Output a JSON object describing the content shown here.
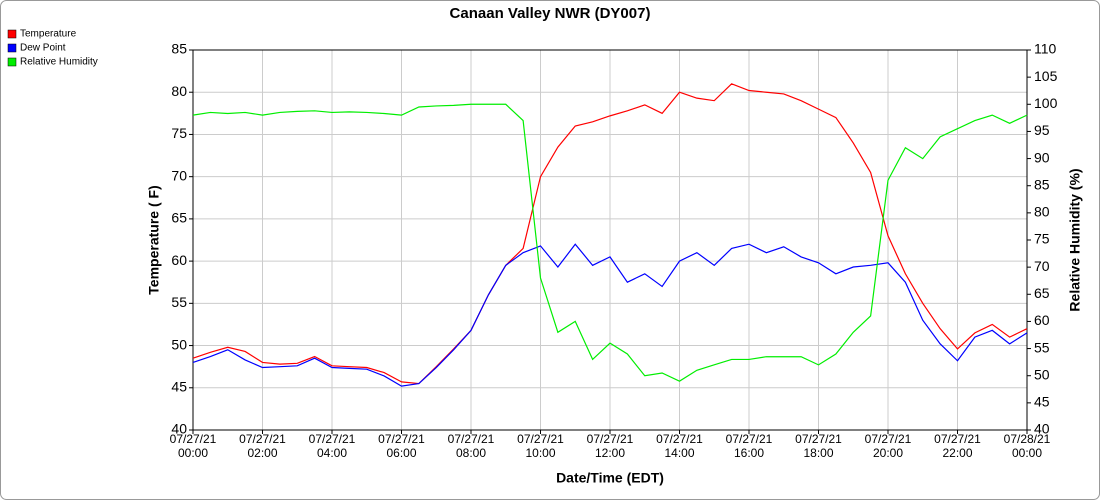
{
  "chart_data": {
    "type": "line",
    "title": "Canaan Valley NWR (DY007)",
    "x_label": "Date/Time (EDT)",
    "y_label": "Temperature ( F)",
    "y2_label": "Relative Humidity (%)",
    "x": [
      "07/27/21 00:00",
      "07/27/21 00:30",
      "07/27/21 01:00",
      "07/27/21 01:30",
      "07/27/21 02:00",
      "07/27/21 02:30",
      "07/27/21 03:00",
      "07/27/21 03:30",
      "07/27/21 04:00",
      "07/27/21 04:30",
      "07/27/21 05:00",
      "07/27/21 05:30",
      "07/27/21 06:00",
      "07/27/21 06:30",
      "07/27/21 07:00",
      "07/27/21 07:30",
      "07/27/21 08:00",
      "07/27/21 08:30",
      "07/27/21 09:00",
      "07/27/21 09:30",
      "07/27/21 10:00",
      "07/27/21 10:30",
      "07/27/21 11:00",
      "07/27/21 11:30",
      "07/27/21 12:00",
      "07/27/21 12:30",
      "07/27/21 13:00",
      "07/27/21 13:30",
      "07/27/21 14:00",
      "07/27/21 14:30",
      "07/27/21 15:00",
      "07/27/21 15:30",
      "07/27/21 16:00",
      "07/27/21 16:30",
      "07/27/21 17:00",
      "07/27/21 17:30",
      "07/27/21 18:00",
      "07/27/21 18:30",
      "07/27/21 19:00",
      "07/27/21 19:30",
      "07/27/21 20:00",
      "07/27/21 20:30",
      "07/27/21 21:00",
      "07/27/21 21:30",
      "07/27/21 22:00",
      "07/27/21 22:30",
      "07/27/21 23:00",
      "07/27/21 23:30",
      "07/28/21 00:00"
    ],
    "series": [
      {
        "name": "Temperature",
        "color": "#ff0000",
        "values": [
          48.5,
          49.2,
          49.8,
          49.3,
          48,
          47.8,
          47.9,
          48.7,
          47.6,
          47.5,
          47.4,
          46.8,
          45.7,
          45.5,
          47.5,
          49.6,
          51.8,
          56,
          59.5,
          61.5,
          70,
          73.5,
          76,
          76.5,
          77.2,
          77.8,
          78.5,
          77.5,
          80,
          79.3,
          79,
          81,
          80.2,
          80,
          79.8,
          79,
          78,
          77,
          74,
          70.5,
          63,
          58.5,
          55,
          52,
          49.6,
          51.5,
          52.5,
          51,
          52
        ]
      },
      {
        "name": "Dew Point",
        "color": "#0000ff",
        "values": [
          48,
          48.7,
          49.5,
          48.3,
          47.4,
          47.5,
          47.6,
          48.5,
          47.4,
          47.3,
          47.2,
          46.4,
          45.2,
          45.5,
          47.4,
          49.5,
          51.8,
          56,
          59.5,
          61,
          61.8,
          59.3,
          62,
          59.5,
          60.5,
          57.5,
          58.5,
          57,
          60,
          61,
          59.5,
          61.5,
          62,
          61,
          61.7,
          60.5,
          59.8,
          58.5,
          59.3,
          59.5,
          59.8,
          57.5,
          53,
          50.2,
          48.2,
          51,
          51.8,
          50.2,
          51.5
        ]
      },
      {
        "name": "Relative Humidity",
        "color": "#00ee00",
        "axis": "y2",
        "values": [
          98,
          98.5,
          98.3,
          98.5,
          98,
          98.5,
          98.7,
          98.8,
          98.5,
          98.6,
          98.5,
          98.3,
          98,
          99.5,
          99.7,
          99.8,
          100,
          100,
          100,
          97,
          68,
          58,
          60,
          53,
          56,
          54,
          50,
          50.5,
          49,
          51,
          52,
          53,
          53,
          53.5,
          53.5,
          53.5,
          52,
          54,
          58,
          61,
          86,
          92,
          90,
          94,
          95.5,
          97,
          98,
          96.5,
          98
        ]
      }
    ],
    "xlim": [
      "07/27/21 00:00",
      "07/28/21 00:00"
    ],
    "xticks": [
      "07/27/21 00:00",
      "07/27/21 02:00",
      "07/27/21 04:00",
      "07/27/21 06:00",
      "07/27/21 08:00",
      "07/27/21 10:00",
      "07/27/21 12:00",
      "07/27/21 14:00",
      "07/27/21 16:00",
      "07/27/21 18:00",
      "07/27/21 20:00",
      "07/27/21 22:00",
      "07/28/21 00:00"
    ],
    "ylim": [
      40,
      85
    ],
    "yticks": [
      40,
      45,
      50,
      55,
      60,
      65,
      70,
      75,
      80,
      85
    ],
    "y2lim": [
      40,
      110
    ],
    "y2ticks": [
      40,
      45,
      50,
      55,
      60,
      65,
      70,
      75,
      80,
      85,
      90,
      95,
      100,
      105,
      110
    ],
    "grid": true,
    "legend": "top-left"
  }
}
